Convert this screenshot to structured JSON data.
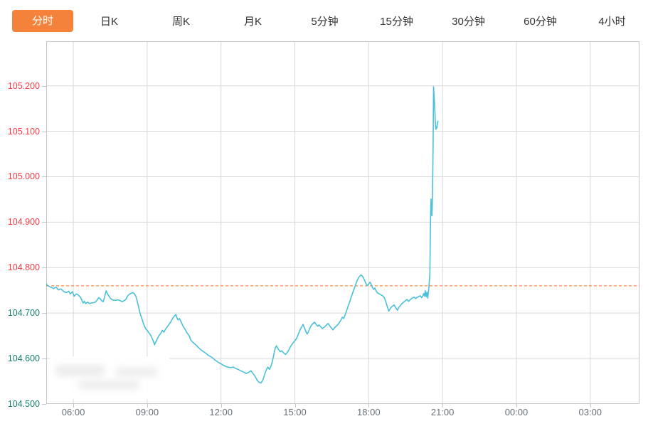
{
  "tabs": {
    "items": [
      {
        "label": "分时",
        "active": true
      },
      {
        "label": "日K",
        "active": false
      },
      {
        "label": "周K",
        "active": false
      },
      {
        "label": "月K",
        "active": false
      },
      {
        "label": "5分钟",
        "active": false
      },
      {
        "label": "15分钟",
        "active": false
      },
      {
        "label": "30分钟",
        "active": false
      },
      {
        "label": "60分钟",
        "active": false
      },
      {
        "label": "4小时",
        "active": false
      }
    ]
  },
  "colors": {
    "accent_orange": "#f5823a",
    "tab_text": "#333333",
    "line": "#4bc0d9",
    "prev_close_dash": "#ff6d1f",
    "label_up": "#f83b44",
    "label_down": "#15806d",
    "grid": "#d9d9d9",
    "border": "#c6c6c6",
    "time_text": "#68717a"
  },
  "chart_data": {
    "type": "line",
    "title": "",
    "xlabel": "",
    "ylabel": "",
    "legend": "none",
    "grid": "on",
    "prev_close": 104.76,
    "y_axis": {
      "min": 104.5,
      "max": 105.298,
      "ticks": [
        {
          "label": "105.200",
          "value": 105.2
        },
        {
          "label": "105.100",
          "value": 105.1
        },
        {
          "label": "105.000",
          "value": 105.0
        },
        {
          "label": "104.900",
          "value": 104.9
        },
        {
          "label": "104.800",
          "value": 104.8
        },
        {
          "label": "104.700",
          "value": 104.7
        },
        {
          "label": "104.600",
          "value": 104.6
        },
        {
          "label": "104.500",
          "value": 104.5
        }
      ]
    },
    "x_axis": {
      "min_minute": 294,
      "max_minute": 1740,
      "ticks": [
        {
          "label": "06:00",
          "minute": 360
        },
        {
          "label": "09:00",
          "minute": 540
        },
        {
          "label": "12:00",
          "minute": 720
        },
        {
          "label": "15:00",
          "minute": 900
        },
        {
          "label": "18:00",
          "minute": 1080
        },
        {
          "label": "21:00",
          "minute": 1260
        },
        {
          "label": "00:00",
          "minute": 1440
        },
        {
          "label": "03:00",
          "minute": 1620
        }
      ]
    },
    "series": [
      {
        "name": "price",
        "color": "#4bc0d9",
        "points": [
          [
            294,
            104.764
          ],
          [
            298,
            104.76
          ],
          [
            305,
            104.757
          ],
          [
            312,
            104.754
          ],
          [
            318,
            104.757
          ],
          [
            324,
            104.751
          ],
          [
            330,
            104.753
          ],
          [
            337,
            104.747
          ],
          [
            343,
            104.745
          ],
          [
            349,
            104.748
          ],
          [
            353,
            104.742
          ],
          [
            358,
            104.747
          ],
          [
            362,
            104.737
          ],
          [
            367,
            104.742
          ],
          [
            372,
            104.74
          ],
          [
            377,
            104.735
          ],
          [
            381,
            104.728
          ],
          [
            384,
            104.722
          ],
          [
            387,
            104.726
          ],
          [
            390,
            104.721
          ],
          [
            395,
            104.724
          ],
          [
            399,
            104.721
          ],
          [
            404,
            104.722
          ],
          [
            410,
            104.723
          ],
          [
            415,
            104.725
          ],
          [
            419,
            104.73
          ],
          [
            422,
            104.734
          ],
          [
            426,
            104.731
          ],
          [
            429,
            104.727
          ],
          [
            433,
            104.725
          ],
          [
            436,
            104.735
          ],
          [
            440,
            104.749
          ],
          [
            443,
            104.743
          ],
          [
            447,
            104.737
          ],
          [
            450,
            104.733
          ],
          [
            455,
            104.729
          ],
          [
            462,
            104.728
          ],
          [
            468,
            104.729
          ],
          [
            473,
            104.728
          ],
          [
            479,
            104.725
          ],
          [
            483,
            104.727
          ],
          [
            488,
            104.73
          ],
          [
            492,
            104.737
          ],
          [
            496,
            104.741
          ],
          [
            500,
            104.743
          ],
          [
            505,
            104.745
          ],
          [
            509,
            104.742
          ],
          [
            513,
            104.736
          ],
          [
            516,
            104.725
          ],
          [
            519,
            104.714
          ],
          [
            522,
            104.702
          ],
          [
            525,
            104.693
          ],
          [
            527,
            104.688
          ],
          [
            530,
            104.68
          ],
          [
            533,
            104.672
          ],
          [
            536,
            104.666
          ],
          [
            540,
            104.662
          ],
          [
            544,
            104.657
          ],
          [
            548,
            104.652
          ],
          [
            552,
            104.645
          ],
          [
            555,
            104.638
          ],
          [
            558,
            104.63
          ],
          [
            560,
            104.635
          ],
          [
            562,
            104.638
          ],
          [
            564,
            104.642
          ],
          [
            568,
            104.649
          ],
          [
            574,
            104.657
          ],
          [
            577,
            104.662
          ],
          [
            581,
            104.658
          ],
          [
            585,
            104.665
          ],
          [
            591,
            104.672
          ],
          [
            597,
            104.68
          ],
          [
            602,
            104.688
          ],
          [
            606,
            104.693
          ],
          [
            610,
            104.697
          ],
          [
            612,
            104.691
          ],
          [
            615,
            104.685
          ],
          [
            619,
            104.688
          ],
          [
            623,
            104.68
          ],
          [
            627,
            104.672
          ],
          [
            632,
            104.665
          ],
          [
            637,
            104.657
          ],
          [
            640,
            104.653
          ],
          [
            643,
            104.649
          ],
          [
            646,
            104.641
          ],
          [
            651,
            104.636
          ],
          [
            655,
            104.633
          ],
          [
            661,
            104.628
          ],
          [
            665,
            104.624
          ],
          [
            670,
            104.62
          ],
          [
            674,
            104.617
          ],
          [
            679,
            104.614
          ],
          [
            684,
            104.611
          ],
          [
            689,
            104.607
          ],
          [
            695,
            104.604
          ],
          [
            700,
            104.601
          ],
          [
            705,
            104.597
          ],
          [
            710,
            104.594
          ],
          [
            714,
            104.591
          ],
          [
            719,
            104.589
          ],
          [
            724,
            104.586
          ],
          [
            731,
            104.583
          ],
          [
            737,
            104.581
          ],
          [
            744,
            104.58
          ],
          [
            750,
            104.581
          ],
          [
            756,
            104.578
          ],
          [
            762,
            104.576
          ],
          [
            768,
            104.573
          ],
          [
            776,
            104.57
          ],
          [
            781,
            104.567
          ],
          [
            788,
            104.57
          ],
          [
            793,
            104.573
          ],
          [
            798,
            104.567
          ],
          [
            803,
            104.561
          ],
          [
            807,
            104.554
          ],
          [
            812,
            104.548
          ],
          [
            817,
            104.546
          ],
          [
            822,
            104.552
          ],
          [
            826,
            104.564
          ],
          [
            831,
            104.576
          ],
          [
            834,
            104.581
          ],
          [
            838,
            104.576
          ],
          [
            843,
            104.586
          ],
          [
            846,
            104.597
          ],
          [
            849,
            104.61
          ],
          [
            852,
            104.622
          ],
          [
            855,
            104.628
          ],
          [
            858,
            104.623
          ],
          [
            861,
            104.619
          ],
          [
            864,
            104.615
          ],
          [
            868,
            104.617
          ],
          [
            872,
            104.613
          ],
          [
            877,
            104.609
          ],
          [
            881,
            104.613
          ],
          [
            885,
            104.618
          ],
          [
            888,
            104.624
          ],
          [
            892,
            104.63
          ],
          [
            897,
            104.636
          ],
          [
            900,
            104.639
          ],
          [
            904,
            104.644
          ],
          [
            907,
            104.65
          ],
          [
            910,
            104.657
          ],
          [
            913,
            104.664
          ],
          [
            917,
            104.67
          ],
          [
            920,
            104.675
          ],
          [
            923,
            104.668
          ],
          [
            927,
            104.659
          ],
          [
            930,
            104.654
          ],
          [
            933,
            104.659
          ],
          [
            936,
            104.666
          ],
          [
            939,
            104.671
          ],
          [
            943,
            104.676
          ],
          [
            948,
            104.68
          ],
          [
            952,
            104.675
          ],
          [
            956,
            104.671
          ],
          [
            959,
            104.674
          ],
          [
            963,
            104.67
          ],
          [
            967,
            104.666
          ],
          [
            972,
            104.669
          ],
          [
            976,
            104.673
          ],
          [
            981,
            104.677
          ],
          [
            985,
            104.672
          ],
          [
            989,
            104.667
          ],
          [
            993,
            104.663
          ],
          [
            997,
            104.668
          ],
          [
            1002,
            104.672
          ],
          [
            1006,
            104.676
          ],
          [
            1010,
            104.681
          ],
          [
            1013,
            104.686
          ],
          [
            1016,
            104.691
          ],
          [
            1019,
            104.688
          ],
          [
            1022,
            104.695
          ],
          [
            1025,
            104.702
          ],
          [
            1028,
            104.71
          ],
          [
            1031,
            104.718
          ],
          [
            1034,
            104.726
          ],
          [
            1037,
            104.734
          ],
          [
            1040,
            104.742
          ],
          [
            1043,
            104.75
          ],
          [
            1046,
            104.757
          ],
          [
            1049,
            104.765
          ],
          [
            1052,
            104.772
          ],
          [
            1055,
            104.777
          ],
          [
            1058,
            104.781
          ],
          [
            1061,
            104.784
          ],
          [
            1064,
            104.782
          ],
          [
            1067,
            104.778
          ],
          [
            1070,
            104.772
          ],
          [
            1073,
            104.765
          ],
          [
            1077,
            104.76
          ],
          [
            1080,
            104.764
          ],
          [
            1083,
            104.768
          ],
          [
            1086,
            104.763
          ],
          [
            1089,
            104.757
          ],
          [
            1092,
            104.752
          ],
          [
            1095,
            104.755
          ],
          [
            1098,
            104.749
          ],
          [
            1101,
            104.745
          ],
          [
            1106,
            104.742
          ],
          [
            1110,
            104.74
          ],
          [
            1114,
            104.738
          ],
          [
            1118,
            104.734
          ],
          [
            1121,
            104.727
          ],
          [
            1124,
            104.718
          ],
          [
            1127,
            104.71
          ],
          [
            1129,
            104.704
          ],
          [
            1132,
            104.709
          ],
          [
            1135,
            104.713
          ],
          [
            1139,
            104.716
          ],
          [
            1142,
            104.718
          ],
          [
            1145,
            104.713
          ],
          [
            1148,
            104.709
          ],
          [
            1150,
            104.706
          ],
          [
            1153,
            104.712
          ],
          [
            1157,
            104.716
          ],
          [
            1160,
            104.72
          ],
          [
            1165,
            104.724
          ],
          [
            1169,
            104.727
          ],
          [
            1173,
            104.73
          ],
          [
            1177,
            104.726
          ],
          [
            1182,
            104.73
          ],
          [
            1186,
            104.733
          ],
          [
            1191,
            104.735
          ],
          [
            1194,
            104.732
          ],
          [
            1199,
            104.735
          ],
          [
            1203,
            104.737
          ],
          [
            1206,
            104.738
          ],
          [
            1209,
            104.734
          ],
          [
            1212,
            104.738
          ],
          [
            1214,
            104.743
          ],
          [
            1216,
            104.737
          ],
          [
            1218,
            104.749
          ],
          [
            1220,
            104.736
          ],
          [
            1222,
            104.746
          ],
          [
            1224,
            104.733
          ],
          [
            1227,
            104.759
          ],
          [
            1229,
            104.785
          ],
          [
            1230,
            104.864
          ],
          [
            1231,
            104.917
          ],
          [
            1232,
            104.951
          ],
          [
            1233,
            104.917
          ],
          [
            1234,
            104.914
          ],
          [
            1235,
            104.938
          ],
          [
            1236,
            104.996
          ],
          [
            1237,
            105.075
          ],
          [
            1238,
            105.198
          ],
          [
            1239,
            105.183
          ],
          [
            1240,
            105.17
          ],
          [
            1241,
            105.149
          ],
          [
            1242,
            105.128
          ],
          [
            1243,
            105.112
          ],
          [
            1244,
            105.104
          ],
          [
            1245,
            105.11
          ],
          [
            1246,
            105.107
          ],
          [
            1247,
            105.115
          ],
          [
            1248,
            105.119
          ],
          [
            1249,
            105.122
          ]
        ]
      }
    ]
  }
}
